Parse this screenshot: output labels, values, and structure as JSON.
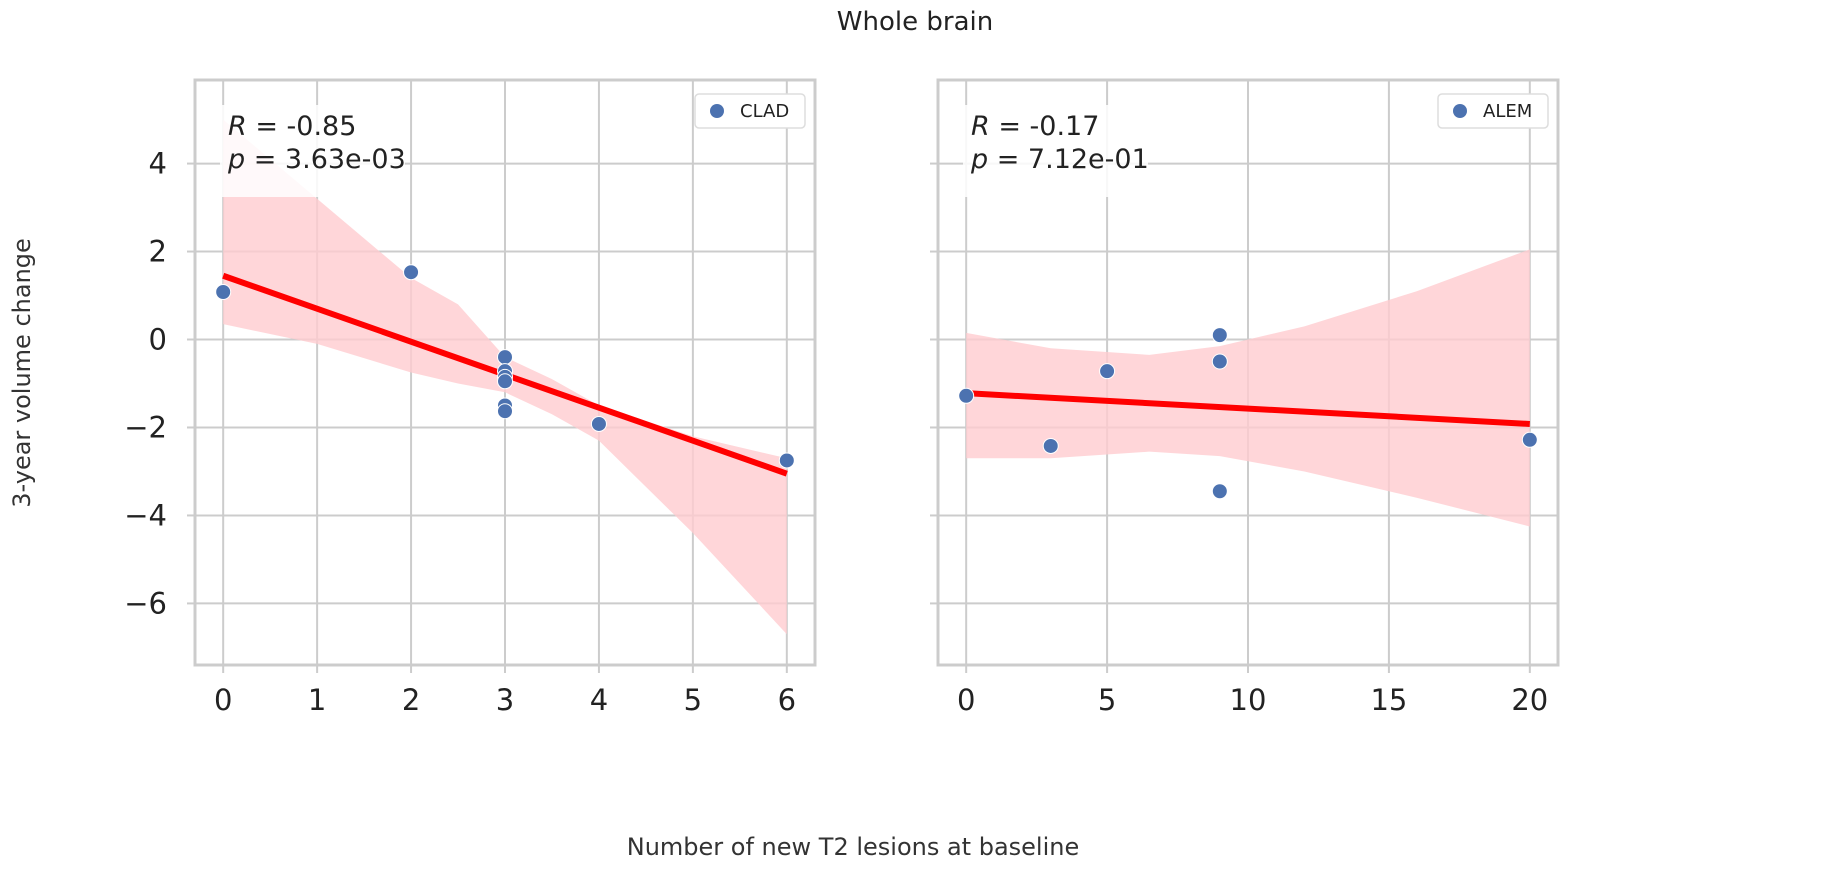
{
  "figure": {
    "title": "Whole brain",
    "xlabel": "Number of new T2 lesions at baseline",
    "ylabel": "3-year volume change"
  },
  "chart_data": [
    {
      "type": "scatter",
      "legend": "CLAD",
      "legend_position": "top-right",
      "grid": true,
      "stat_r": "-0.85",
      "stat_p": "3.63e-03",
      "xlim": [
        -0.3,
        6.3
      ],
      "ylim": [
        -7.4,
        5.9
      ],
      "xticks": [
        0,
        1,
        2,
        3,
        4,
        5,
        6
      ],
      "yticks": [
        -6,
        -4,
        -2,
        0,
        2,
        4
      ],
      "points": [
        {
          "x": 0,
          "y": 1.08
        },
        {
          "x": 2,
          "y": 1.53
        },
        {
          "x": 3,
          "y": -0.4
        },
        {
          "x": 3,
          "y": -0.72
        },
        {
          "x": 3,
          "y": -0.85
        },
        {
          "x": 3,
          "y": -0.95
        },
        {
          "x": 3,
          "y": -1.5
        },
        {
          "x": 3,
          "y": -1.63
        },
        {
          "x": 4,
          "y": -1.92
        },
        {
          "x": 6,
          "y": -2.75
        }
      ],
      "fit_line": {
        "x": [
          0,
          6
        ],
        "y": [
          1.45,
          -3.05
        ]
      },
      "ci_band": {
        "x": [
          0,
          1,
          2,
          2.5,
          3,
          3.5,
          4,
          5,
          6
        ],
        "upper": [
          5.0,
          3.2,
          1.4,
          0.8,
          -0.4,
          -0.9,
          -1.5,
          -2.2,
          -2.7
        ],
        "lower": [
          0.35,
          -0.1,
          -0.75,
          -1.0,
          -1.2,
          -1.7,
          -2.3,
          -4.4,
          -6.7
        ]
      },
      "colors": {
        "points": "#4c72b0",
        "line": "#ff0000",
        "band": "#ffcccf"
      }
    },
    {
      "type": "scatter",
      "legend": "ALEM",
      "legend_position": "top-right",
      "grid": true,
      "stat_r": "-0.17",
      "stat_p": "7.12e-01",
      "xlim": [
        -1,
        21
      ],
      "ylim": [
        -7.4,
        5.9
      ],
      "xticks": [
        0,
        5,
        10,
        15,
        20
      ],
      "yticks": [
        -6,
        -4,
        -2,
        0,
        2,
        4
      ],
      "points": [
        {
          "x": 0,
          "y": -1.28
        },
        {
          "x": 3,
          "y": -2.42
        },
        {
          "x": 5,
          "y": -0.72
        },
        {
          "x": 9,
          "y": 0.1
        },
        {
          "x": 9,
          "y": -0.5
        },
        {
          "x": 9,
          "y": -3.45
        },
        {
          "x": 20,
          "y": -2.28
        }
      ],
      "fit_line": {
        "x": [
          0,
          20
        ],
        "y": [
          -1.22,
          -1.92
        ]
      },
      "ci_band": {
        "x": [
          0,
          3,
          6.5,
          9,
          12,
          16,
          20
        ],
        "upper": [
          0.15,
          -0.2,
          -0.35,
          -0.15,
          0.3,
          1.1,
          2.05
        ],
        "lower": [
          -2.7,
          -2.7,
          -2.55,
          -2.65,
          -3.0,
          -3.6,
          -4.25
        ]
      },
      "colors": {
        "points": "#4c72b0",
        "line": "#ff0000",
        "band": "#ffcccf"
      }
    }
  ]
}
